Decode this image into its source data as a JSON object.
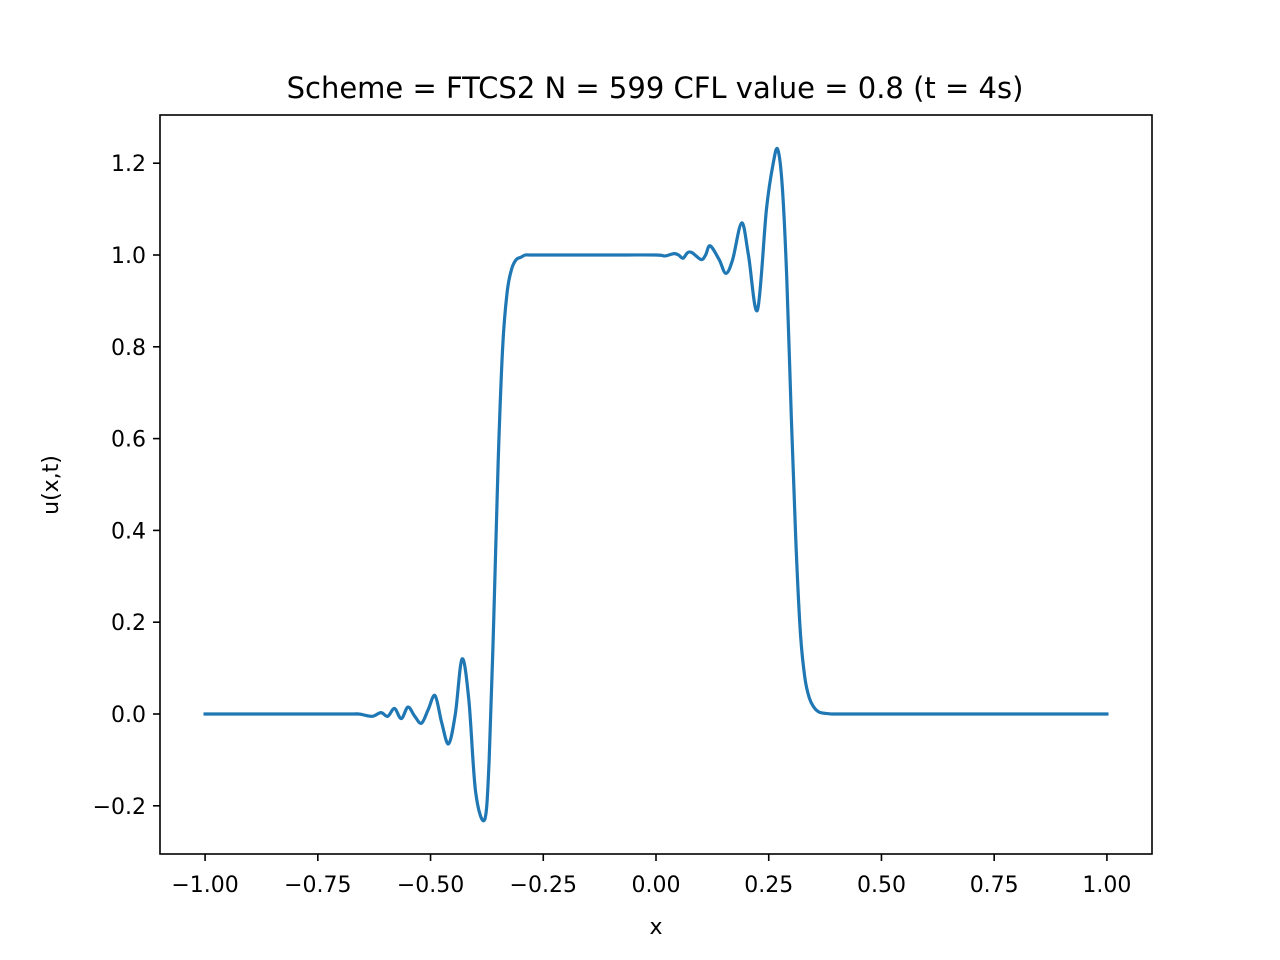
{
  "chart_data": {
    "type": "line",
    "title": "Scheme = FTCS2 N = 599 CFL value = 0.8 (t = 4s)",
    "xlabel": "x",
    "ylabel": "u(x,t)",
    "xlim": [
      -1.1,
      1.1
    ],
    "ylim": [
      -0.305,
      1.305
    ],
    "grid": false,
    "xticks": [
      -1.0,
      -0.75,
      -0.5,
      -0.25,
      0.0,
      0.25,
      0.5,
      0.75,
      1.0
    ],
    "xtick_labels": [
      "−1.00",
      "−0.75",
      "−0.50",
      "−0.25",
      "0.00",
      "0.25",
      "0.50",
      "0.75",
      "1.00"
    ],
    "yticks": [
      -0.2,
      0.0,
      0.2,
      0.4,
      0.6,
      0.8,
      1.0,
      1.2
    ],
    "ytick_labels": [
      "−0.2",
      "0.0",
      "0.2",
      "0.4",
      "0.6",
      "0.8",
      "1.0",
      "1.2"
    ],
    "series": [
      {
        "color": "#1f77b4",
        "x": [
          -1.0,
          -0.7,
          -0.66,
          -0.63,
          -0.61,
          -0.595,
          -0.58,
          -0.565,
          -0.55,
          -0.535,
          -0.52,
          -0.505,
          -0.49,
          -0.475,
          -0.46,
          -0.445,
          -0.43,
          -0.415,
          -0.4,
          -0.38,
          -0.37,
          -0.36,
          -0.35,
          -0.34,
          -0.33,
          -0.32,
          -0.31,
          -0.3,
          -0.29,
          -0.28,
          -0.27,
          -0.26,
          -0.25,
          -0.2,
          -0.1,
          0.0,
          0.02,
          0.04,
          0.05,
          0.06,
          0.07,
          0.08,
          0.1,
          0.11,
          0.12,
          0.14,
          0.155,
          0.17,
          0.19,
          0.205,
          0.225,
          0.245,
          0.26,
          0.27,
          0.28,
          0.29,
          0.3,
          0.31,
          0.32,
          0.33,
          0.34,
          0.35,
          0.36,
          0.37,
          0.38,
          0.39,
          0.4,
          0.42,
          0.45,
          0.5,
          0.6,
          0.8,
          1.0
        ],
        "y": [
          0.0,
          0.0,
          0.0,
          -0.005,
          0.003,
          -0.005,
          0.012,
          -0.01,
          0.015,
          -0.005,
          -0.02,
          0.01,
          0.04,
          -0.02,
          -0.065,
          0.0,
          0.12,
          0.03,
          -0.17,
          -0.23,
          -0.1,
          0.2,
          0.55,
          0.8,
          0.92,
          0.97,
          0.99,
          0.995,
          1.0,
          1.0,
          1.0,
          1.0,
          1.0,
          1.0,
          1.0,
          1.0,
          0.998,
          1.003,
          1.0,
          0.993,
          1.005,
          1.005,
          0.99,
          1.0,
          1.02,
          0.99,
          0.96,
          0.99,
          1.07,
          1.0,
          0.88,
          1.1,
          1.2,
          1.23,
          1.15,
          0.95,
          0.65,
          0.38,
          0.18,
          0.08,
          0.035,
          0.015,
          0.005,
          0.002,
          0.001,
          0.0,
          0.0,
          0.0,
          0.0,
          0.0,
          0.0,
          0.0,
          0.0
        ]
      }
    ]
  }
}
